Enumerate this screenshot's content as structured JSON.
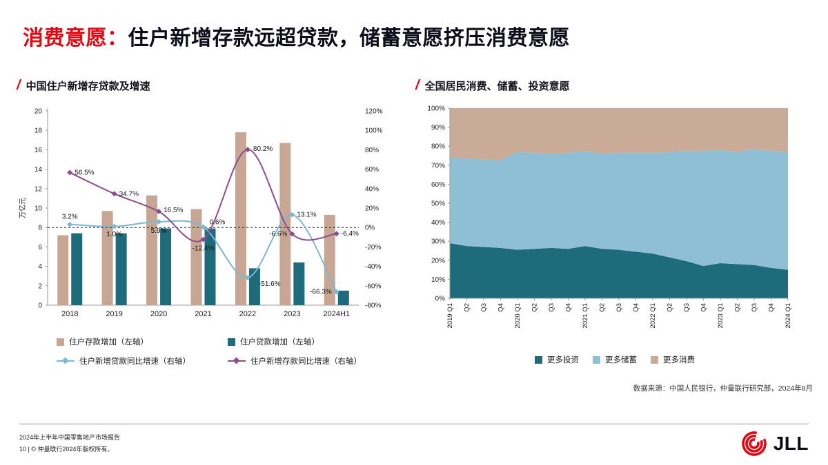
{
  "slide": {
    "title": {
      "highlight": "消费意愿：",
      "rest": "住户新增存款远超贷款，储蓄意愿挤压消费意愿"
    },
    "source_note": "数据来源：中国人民银行，仲量联行研究部，2024年8月",
    "footer": {
      "report_title": "2024年上半年中国零售地产市场报告",
      "copyright": "10 | © 仲量联行2024年版权所有。",
      "logo_text": "JLL"
    }
  },
  "colors": {
    "brand_red": "#e30613",
    "deposit_bar": "#c7a794",
    "loan_bar": "#1e6b7b",
    "loan_growth_line": "#7cb7d3",
    "deposit_growth_line": "#8d4c8d",
    "invest_area": "#1e6b7b",
    "save_area": "#8fbfd4",
    "consume_area": "#c9ab98"
  },
  "chart_data": [
    {
      "type": "bar",
      "subtype": "combo-bar-line",
      "title": "中国住户新增存贷款及增速",
      "ylabel_left": "万亿元",
      "categories": [
        "2018",
        "2019",
        "2020",
        "2021",
        "2022",
        "2023",
        "2024H1"
      ],
      "left_axis": {
        "min": 0,
        "max": 20,
        "step": 2
      },
      "right_axis": {
        "min": -80,
        "max": 120,
        "step": 20,
        "suffix": "%"
      },
      "zero_reference_line_right": 0,
      "bar_series": [
        {
          "name": "住户存款增加（左轴）",
          "axis": "left",
          "color_key": "deposit_bar",
          "values": [
            7.2,
            9.7,
            11.3,
            9.9,
            17.8,
            16.7,
            9.3
          ]
        },
        {
          "name": "住户贷款增加（左轴）",
          "axis": "left",
          "color_key": "loan_bar",
          "values": [
            7.4,
            7.4,
            7.9,
            7.9,
            3.8,
            4.4,
            1.5
          ]
        }
      ],
      "line_series": [
        {
          "name": "住户新增贷款同比增速（右轴）",
          "axis": "right",
          "color_key": "loan_growth_line",
          "smooth": true,
          "values": [
            3.2,
            1.0,
            5.9,
            0.6,
            -51.6,
            13.1,
            -66.3
          ],
          "labels": [
            "3.2%",
            "1.0%",
            "5.9%",
            "0.6%",
            "-51.6%",
            "13.1%",
            "-66.3%"
          ],
          "label_offsets": [
            [
              0,
              -8,
              "m"
            ],
            [
              0,
              14,
              "m"
            ],
            [
              0,
              16,
              "m"
            ],
            [
              9,
              -4,
              "s"
            ],
            [
              16,
              12,
              "s"
            ],
            [
              7,
              3,
              "s"
            ],
            [
              -7,
              3,
              "e"
            ]
          ]
        },
        {
          "name": "住户新增存款同比增速（右轴）",
          "axis": "right",
          "color_key": "deposit_growth_line",
          "smooth": true,
          "values": [
            56.5,
            34.7,
            16.5,
            -12.4,
            80.2,
            -6.6,
            -6.4
          ],
          "labels": [
            "56.5%",
            "34.7%",
            "16.5%",
            "-12.4%",
            "80.2%",
            "-6.6%",
            "-6.4%"
          ],
          "label_offsets": [
            [
              7,
              3,
              "s"
            ],
            [
              7,
              3,
              "s"
            ],
            [
              7,
              1,
              "s"
            ],
            [
              0,
              16,
              "m"
            ],
            [
              8,
              2,
              "s"
            ],
            [
              -7,
              3,
              "e"
            ],
            [
              6,
              3,
              "s"
            ]
          ]
        }
      ]
    },
    {
      "type": "area",
      "subtype": "stacked-area-100",
      "title": "全国居民消费、储蓄、投资意愿",
      "x": [
        "2019 Q1",
        "Q2",
        "Q3",
        "Q4",
        "2020 Q1",
        "Q2",
        "Q3",
        "Q4",
        "2021 Q1",
        "Q2",
        "Q3",
        "Q4",
        "2022 Q1",
        "Q2",
        "Q3",
        "Q4",
        "2023 Q1",
        "Q2",
        "Q3",
        "Q4",
        "2024 Q1"
      ],
      "y_axis": {
        "min": 0,
        "max": 100,
        "step": 10,
        "suffix": "%"
      },
      "series": [
        {
          "name": "更多投资",
          "color_key": "invest_area",
          "values": [
            29,
            27.5,
            27,
            26.5,
            25.5,
            26,
            26.5,
            26,
            27.5,
            26,
            25.5,
            24.5,
            23.5,
            21.5,
            19.5,
            17,
            18.5,
            18,
            17.5,
            16,
            15
          ]
        },
        {
          "name": "更多储蓄",
          "color_key": "save_area",
          "values": [
            45,
            46,
            46,
            46,
            51.5,
            50.5,
            49.5,
            50.5,
            50,
            50,
            51,
            52,
            53,
            55.5,
            58,
            60.5,
            59.5,
            59,
            61,
            61.5,
            62
          ]
        },
        {
          "name": "更多消费",
          "color_key": "consume_area",
          "values": [
            26,
            26.5,
            27,
            27.5,
            23,
            23.5,
            24,
            23.5,
            22.5,
            24,
            23.5,
            23.5,
            23.5,
            23,
            22.5,
            22.5,
            22,
            23,
            21.5,
            22.5,
            23
          ]
        }
      ],
      "legend_position": "bottom"
    }
  ]
}
